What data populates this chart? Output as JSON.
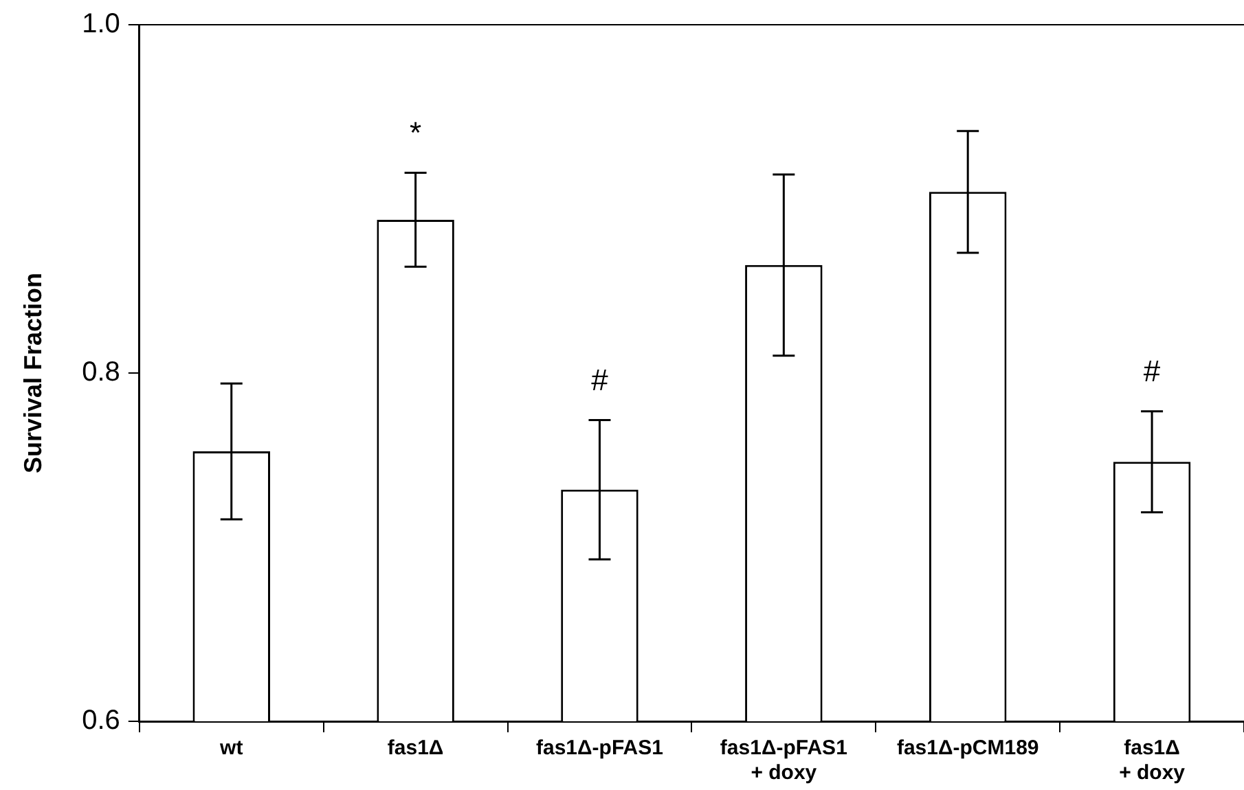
{
  "chart_data": {
    "type": "bar",
    "ylabel": "Survival Fraction",
    "categories": [
      "wt",
      "fas1Δ",
      "fas1Δ-pFAS1",
      "fas1Δ-pFAS1\n+ doxy",
      "fas1Δ-pCM189",
      "fas1Δ\n+ doxy"
    ],
    "values": [
      0.755,
      0.888,
      0.733,
      0.862,
      0.904,
      0.749
    ],
    "errors": [
      0.039,
      0.027,
      0.04,
      0.052,
      0.035,
      0.029
    ],
    "color": "#ffffff",
    "ylim": [
      0.6,
      1.0
    ],
    "yticks": [
      0.6,
      0.8,
      {
        "value": 1.0,
        "label": "1.0"
      }
    ],
    "grid": false,
    "legend": false,
    "annotations": [
      {
        "text": "*",
        "x": "fas1Δ",
        "y": 0.915
      },
      {
        "text": "#",
        "x": "fas1Δ-pFAS1",
        "y": 0.773
      },
      {
        "text": "#",
        "x": "fas1Δ\n+ doxy",
        "y": 0.778
      }
    ]
  }
}
